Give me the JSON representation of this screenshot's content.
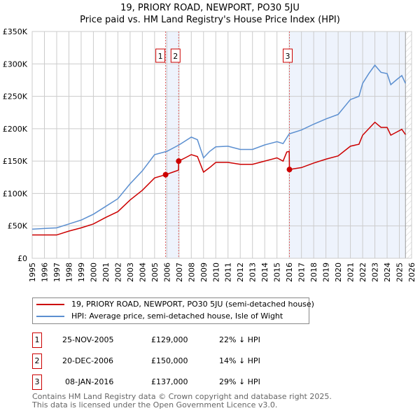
{
  "chart_data": {
    "type": "line",
    "title": "19, PRIORY ROAD, NEWPORT, PO30 5JU",
    "subtitle": "Price paid vs. HM Land Registry's House Price Index (HPI)",
    "xlim": [
      1995,
      2026
    ],
    "ylim": [
      0,
      350000
    ],
    "x_ticks": [
      "1995",
      "1996",
      "1997",
      "1998",
      "1999",
      "2000",
      "2001",
      "2002",
      "2003",
      "2004",
      "2005",
      "2006",
      "2007",
      "2008",
      "2009",
      "2010",
      "2011",
      "2012",
      "2013",
      "2014",
      "2015",
      "2016",
      "2017",
      "2018",
      "2019",
      "2020",
      "2021",
      "2022",
      "2023",
      "2024",
      "2025",
      "2026"
    ],
    "y_ticks": [
      {
        "v": 0,
        "label": "£0"
      },
      {
        "v": 50000,
        "label": "£50K"
      },
      {
        "v": 100000,
        "label": "£100K"
      },
      {
        "v": 150000,
        "label": "£150K"
      },
      {
        "v": 200000,
        "label": "£200K"
      },
      {
        "v": 250000,
        "label": "£250K"
      },
      {
        "v": 300000,
        "label": "£300K"
      },
      {
        "v": 350000,
        "label": "£350K"
      }
    ],
    "grid": true,
    "series": [
      {
        "name": "19, PRIORY ROAD, NEWPORT, PO30 5JU (semi-detached house)",
        "color": "#cc0000",
        "x": [
          1995,
          1996,
          1997,
          1998,
          1999,
          2000,
          2001,
          2002,
          2003,
          2004,
          2005,
          2005.9,
          2006.5,
          2006.95,
          2006.97,
          2007.5,
          2008,
          2008.5,
          2009,
          2009.5,
          2010,
          2011,
          2012,
          2013,
          2014,
          2015,
          2015.5,
          2015.8,
          2016.0,
          2016.02,
          2017,
          2018,
          2019,
          2020,
          2021,
          2021.7,
          2022,
          2022.5,
          2023,
          2023.5,
          2024,
          2024.3,
          2024.8,
          2025.2,
          2025.5
        ],
        "y": [
          36000,
          36000,
          36000,
          42000,
          47000,
          53000,
          63000,
          72000,
          90000,
          105000,
          124000,
          129000,
          133000,
          136000,
          150000,
          155000,
          160000,
          157000,
          133000,
          140000,
          148000,
          148000,
          145000,
          145000,
          150000,
          155000,
          150000,
          164000,
          165000,
          137000,
          140000,
          147000,
          153000,
          158000,
          173000,
          176000,
          190000,
          200000,
          210000,
          202000,
          202000,
          190000,
          195000,
          199000,
          191000
        ]
      },
      {
        "name": "HPI: Average price, semi-detached house, Isle of Wight",
        "color": "#5b8fd0",
        "x": [
          1995,
          1996,
          1997,
          1998,
          1999,
          2000,
          2001,
          2002,
          2003,
          2004,
          2005,
          2006,
          2007,
          2008,
          2008.5,
          2009,
          2009.5,
          2010,
          2011,
          2012,
          2013,
          2014,
          2015,
          2015.5,
          2016,
          2017,
          2018,
          2019,
          2020,
          2021,
          2021.7,
          2022,
          2022.5,
          2023,
          2023.5,
          2024,
          2024.3,
          2024.8,
          2025.2,
          2025.5
        ],
        "y": [
          45000,
          46000,
          47000,
          53000,
          59000,
          68000,
          80000,
          92000,
          115000,
          135000,
          160000,
          165000,
          175000,
          187000,
          183000,
          155000,
          165000,
          172000,
          173000,
          168000,
          168000,
          175000,
          180000,
          177000,
          192000,
          198000,
          207000,
          215000,
          222000,
          245000,
          250000,
          270000,
          285000,
          298000,
          287000,
          285000,
          268000,
          276000,
          282000,
          270000
        ]
      }
    ],
    "sales": [
      {
        "n": "1",
        "x": 2005.9,
        "y": 129000
      },
      {
        "n": "2",
        "x": 2006.97,
        "y": 150000
      },
      {
        "n": "3",
        "x": 2016.02,
        "y": 137000
      }
    ],
    "shaded": [
      [
        2005.9,
        2006.97
      ],
      [
        2016.02,
        2025.5
      ]
    ],
    "hatched_from": 2025.5,
    "legend_position": "below"
  },
  "legend": [
    "19, PRIORY ROAD, NEWPORT, PO30 5JU (semi-detached house)",
    "HPI: Average price, semi-detached house, Isle of Wight"
  ],
  "sales_table": [
    {
      "n": "1",
      "date": "25-NOV-2005",
      "price": "£129,000",
      "hpi": "22% ↓ HPI"
    },
    {
      "n": "2",
      "date": "20-DEC-2006",
      "price": "£150,000",
      "hpi": "14% ↓ HPI"
    },
    {
      "n": "3",
      "date": "08-JAN-2016",
      "price": "£137,000",
      "hpi": "29% ↓ HPI"
    }
  ],
  "footer": [
    "Contains HM Land Registry data © Crown copyright and database right 2025.",
    "This data is licensed under the Open Government Licence v3.0."
  ]
}
